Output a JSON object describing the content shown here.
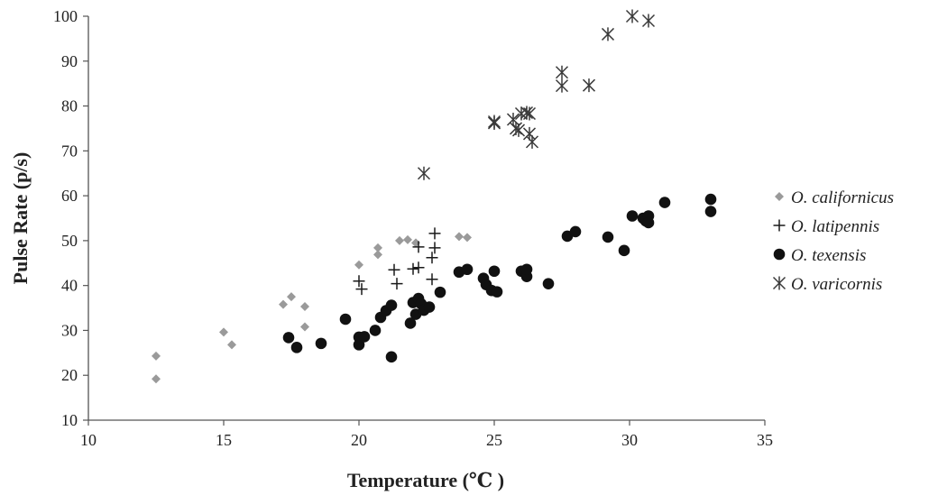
{
  "chart_data": {
    "type": "scatter",
    "xlabel": "Temperature (℃ )",
    "ylabel": "Pulse Rate (p/s)",
    "xlim": [
      10,
      35
    ],
    "ylim": [
      10,
      100
    ],
    "x_ticks": [
      10,
      15,
      20,
      25,
      30,
      35
    ],
    "y_ticks": [
      10,
      20,
      30,
      40,
      50,
      60,
      70,
      80,
      90,
      100
    ],
    "grid": false,
    "legend_position": "right",
    "series": [
      {
        "name": "O. californicus",
        "marker": "diamond",
        "color": "#9a9a9a",
        "points": [
          [
            12.5,
            24.3
          ],
          [
            12.5,
            19.2
          ],
          [
            15.0,
            29.6
          ],
          [
            15.3,
            26.8
          ],
          [
            17.2,
            35.8
          ],
          [
            17.5,
            37.5
          ],
          [
            18.0,
            35.3
          ],
          [
            18.0,
            30.8
          ],
          [
            20.0,
            44.6
          ],
          [
            20.7,
            48.4
          ],
          [
            20.7,
            46.9
          ],
          [
            21.5,
            50.0
          ],
          [
            21.8,
            50.2
          ],
          [
            22.1,
            49.5
          ],
          [
            23.7,
            50.9
          ],
          [
            24.0,
            50.7
          ]
        ]
      },
      {
        "name": "O. latipennis",
        "marker": "plus",
        "color": "#1a1a1a",
        "points": [
          [
            20.0,
            41.0
          ],
          [
            20.1,
            39.2
          ],
          [
            21.3,
            43.5
          ],
          [
            21.4,
            40.4
          ],
          [
            22.0,
            43.7
          ],
          [
            22.2,
            44.0
          ],
          [
            22.2,
            48.6
          ],
          [
            22.7,
            41.4
          ],
          [
            22.7,
            46.2
          ],
          [
            22.8,
            48.4
          ],
          [
            22.8,
            51.6
          ]
        ]
      },
      {
        "name": "O. texensis",
        "marker": "circle",
        "color": "#111111",
        "points": [
          [
            17.4,
            28.4
          ],
          [
            17.7,
            26.2
          ],
          [
            18.6,
            27.1
          ],
          [
            19.5,
            32.5
          ],
          [
            20.0,
            28.5
          ],
          [
            20.0,
            26.8
          ],
          [
            20.2,
            28.6
          ],
          [
            20.6,
            30.0
          ],
          [
            20.8,
            32.9
          ],
          [
            21.0,
            34.4
          ],
          [
            21.2,
            35.6
          ],
          [
            21.2,
            24.1
          ],
          [
            21.9,
            31.6
          ],
          [
            22.0,
            36.2
          ],
          [
            22.1,
            33.6
          ],
          [
            22.2,
            37.1
          ],
          [
            22.3,
            35.9
          ],
          [
            22.4,
            34.5
          ],
          [
            22.6,
            35.2
          ],
          [
            23.0,
            38.5
          ],
          [
            23.7,
            43.0
          ],
          [
            24.0,
            43.6
          ],
          [
            24.6,
            41.6
          ],
          [
            24.7,
            40.2
          ],
          [
            24.9,
            38.9
          ],
          [
            25.0,
            43.2
          ],
          [
            25.1,
            38.6
          ],
          [
            26.0,
            43.2
          ],
          [
            26.2,
            42.0
          ],
          [
            26.2,
            43.6
          ],
          [
            27.0,
            40.4
          ],
          [
            27.7,
            51.0
          ],
          [
            28.0,
            52.0
          ],
          [
            29.2,
            50.8
          ],
          [
            29.8,
            47.8
          ],
          [
            30.1,
            55.5
          ],
          [
            30.5,
            55.0
          ],
          [
            30.6,
            54.4
          ],
          [
            30.7,
            55.5
          ],
          [
            30.7,
            54.0
          ],
          [
            31.3,
            58.5
          ],
          [
            33.0,
            59.2
          ],
          [
            33.0,
            56.5
          ]
        ]
      },
      {
        "name": "O. varicornis",
        "marker": "asterisk",
        "color": "#3a3a3a",
        "points": [
          [
            22.4,
            65.0
          ],
          [
            25.0,
            76.5
          ],
          [
            25.0,
            76.2
          ],
          [
            25.7,
            77.0
          ],
          [
            25.8,
            75.0
          ],
          [
            25.9,
            74.6
          ],
          [
            26.0,
            78.3
          ],
          [
            26.2,
            78.5
          ],
          [
            26.3,
            73.8
          ],
          [
            26.3,
            78.3
          ],
          [
            26.4,
            72.0
          ],
          [
            27.5,
            87.5
          ],
          [
            27.5,
            84.5
          ],
          [
            28.5,
            84.6
          ],
          [
            29.2,
            96.0
          ],
          [
            30.1,
            100.0
          ],
          [
            30.7,
            99.0
          ]
        ]
      }
    ]
  }
}
